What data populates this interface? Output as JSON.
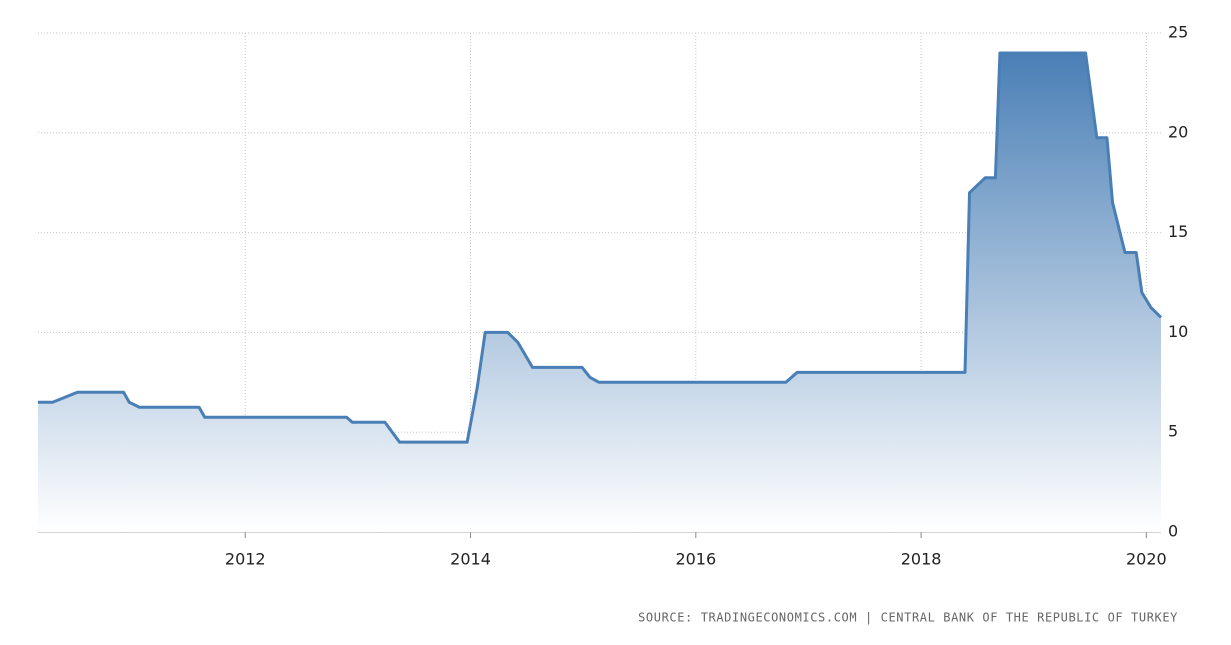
{
  "chart_data": {
    "type": "area",
    "source": "SOURCE: TRADINGECONOMICS.COM | CENTRAL BANK OF THE REPUBLIC OF TURKEY",
    "x": [
      2010.16,
      2010.29,
      2010.51,
      2010.92,
      2010.97,
      2011.06,
      2011.59,
      2011.64,
      2012.9,
      2012.95,
      2013.24,
      2013.37,
      2013.97,
      2014.06,
      2014.13,
      2014.33,
      2014.42,
      2014.55,
      2014.99,
      2015.06,
      2015.14,
      2016.8,
      2016.9,
      2018.39,
      2018.43,
      2018.57,
      2018.66,
      2018.7,
      2019.46,
      2019.56,
      2019.65,
      2019.7,
      2019.81,
      2019.91,
      2019.96,
      2020.04,
      2020.13
    ],
    "values": [
      6.5,
      6.5,
      7.0,
      7.0,
      6.5,
      6.25,
      6.25,
      5.75,
      5.75,
      5.5,
      5.5,
      4.5,
      4.5,
      7.25,
      10,
      10,
      9.5,
      8.25,
      8.25,
      7.75,
      7.5,
      7.5,
      8.0,
      8.0,
      17,
      17.75,
      17.75,
      24,
      24,
      19.75,
      19.75,
      16.5,
      14,
      14,
      12,
      11.25,
      10.75
    ],
    "color": "#4a7fb6",
    "xlim": [
      2010.16,
      2020.13
    ],
    "xticks": [
      2012,
      2014,
      2016,
      2018,
      2020
    ],
    "ylim": [
      0,
      25
    ],
    "yticks": [
      0,
      5,
      10,
      15,
      20,
      25
    ],
    "grid": true
  }
}
